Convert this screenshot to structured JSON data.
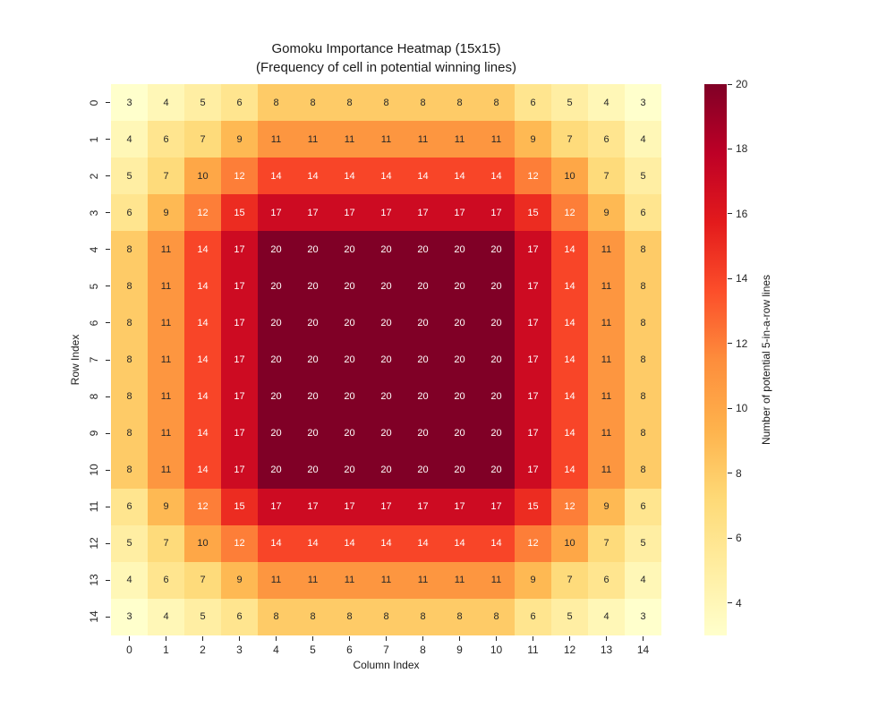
{
  "title": {
    "line1": "Gomoku Importance Heatmap (15x15)",
    "line2": "(Frequency of cell in potential winning lines)"
  },
  "chart_data": {
    "type": "heatmap",
    "title": "Gomoku Importance Heatmap (15x15)",
    "subtitle": "(Frequency of cell in potential winning lines)",
    "xlabel": "Column Index",
    "ylabel": "Row Index",
    "x_ticks": [
      "0",
      "1",
      "2",
      "3",
      "4",
      "5",
      "6",
      "7",
      "8",
      "9",
      "10",
      "11",
      "12",
      "13",
      "14"
    ],
    "y_ticks": [
      "0",
      "1",
      "2",
      "3",
      "4",
      "5",
      "6",
      "7",
      "8",
      "9",
      "10",
      "11",
      "12",
      "13",
      "14"
    ],
    "vmin": 3,
    "vmax": 20,
    "values": [
      [
        3,
        4,
        5,
        6,
        8,
        8,
        8,
        8,
        8,
        8,
        8,
        6,
        5,
        4,
        3
      ],
      [
        4,
        6,
        7,
        9,
        11,
        11,
        11,
        11,
        11,
        11,
        11,
        9,
        7,
        6,
        4
      ],
      [
        5,
        7,
        10,
        12,
        14,
        14,
        14,
        14,
        14,
        14,
        14,
        12,
        10,
        7,
        5
      ],
      [
        6,
        9,
        12,
        15,
        17,
        17,
        17,
        17,
        17,
        17,
        17,
        15,
        12,
        9,
        6
      ],
      [
        8,
        11,
        14,
        17,
        20,
        20,
        20,
        20,
        20,
        20,
        20,
        17,
        14,
        11,
        8
      ],
      [
        8,
        11,
        14,
        17,
        20,
        20,
        20,
        20,
        20,
        20,
        20,
        17,
        14,
        11,
        8
      ],
      [
        8,
        11,
        14,
        17,
        20,
        20,
        20,
        20,
        20,
        20,
        20,
        17,
        14,
        11,
        8
      ],
      [
        8,
        11,
        14,
        17,
        20,
        20,
        20,
        20,
        20,
        20,
        20,
        17,
        14,
        11,
        8
      ],
      [
        8,
        11,
        14,
        17,
        20,
        20,
        20,
        20,
        20,
        20,
        20,
        17,
        14,
        11,
        8
      ],
      [
        8,
        11,
        14,
        17,
        20,
        20,
        20,
        20,
        20,
        20,
        20,
        17,
        14,
        11,
        8
      ],
      [
        8,
        11,
        14,
        17,
        20,
        20,
        20,
        20,
        20,
        20,
        20,
        17,
        14,
        11,
        8
      ],
      [
        6,
        9,
        12,
        15,
        17,
        17,
        17,
        17,
        17,
        17,
        17,
        15,
        12,
        9,
        6
      ],
      [
        5,
        7,
        10,
        12,
        14,
        14,
        14,
        14,
        14,
        14,
        14,
        12,
        10,
        7,
        5
      ],
      [
        4,
        6,
        7,
        9,
        11,
        11,
        11,
        11,
        11,
        11,
        11,
        9,
        7,
        6,
        4
      ],
      [
        3,
        4,
        5,
        6,
        8,
        8,
        8,
        8,
        8,
        8,
        8,
        6,
        5,
        4,
        3
      ]
    ],
    "colormap": {
      "name": "YlOrRd",
      "stops": [
        "#ffffcc",
        "#ffeda0",
        "#fed976",
        "#feb24c",
        "#fd8d3c",
        "#fc4e2a",
        "#e31a1c",
        "#bd0026",
        "#800026"
      ]
    },
    "colorbar": {
      "label": "Number of potential 5-in-a-row lines",
      "ticks": [
        4,
        6,
        8,
        10,
        12,
        14,
        16,
        18,
        20
      ]
    },
    "annotation_colors": {
      "dark": "#262626",
      "light": "#ffffff"
    },
    "legend_position": "right-colorbar",
    "grid": false
  }
}
